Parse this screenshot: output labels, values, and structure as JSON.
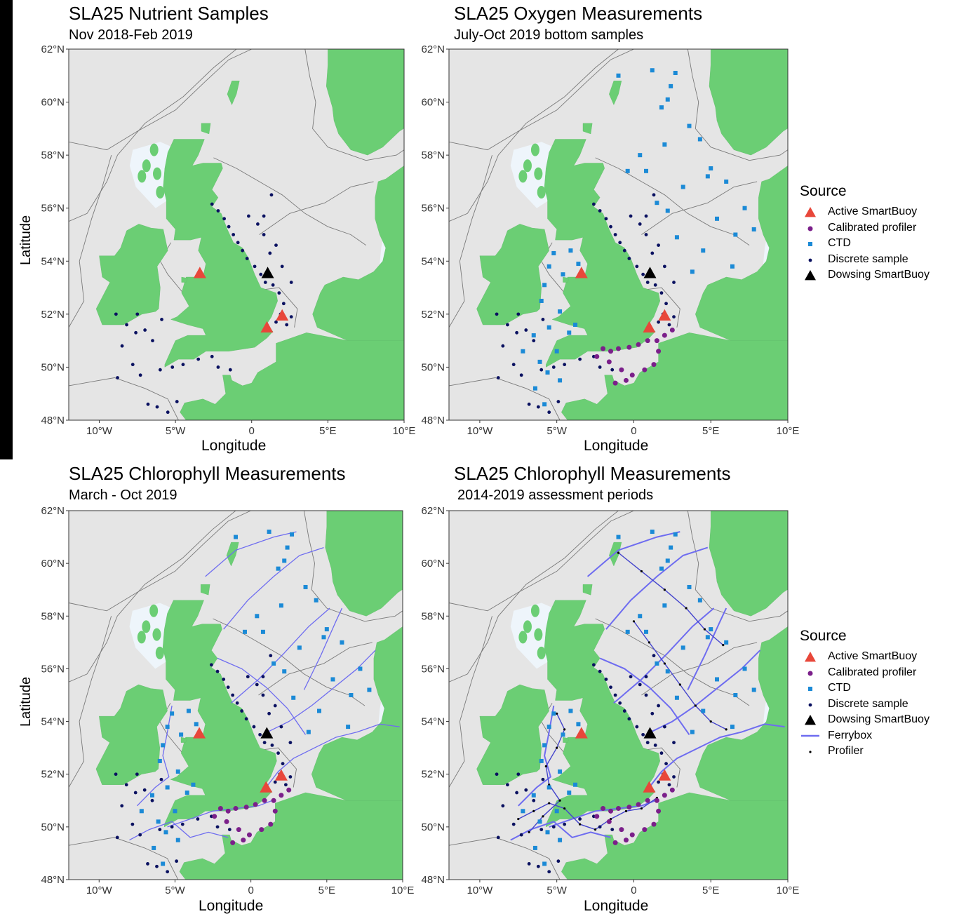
{
  "panels": [
    {
      "title": "SLA25 Nutrient Samples",
      "subtitle": "Nov 2018-Feb 2019",
      "ylabel": "Latitude",
      "xlabel": "Longitude",
      "layers": [
        "discrete",
        "asb",
        "dsb"
      ]
    },
    {
      "title": "SLA25 Oxygen Measurements",
      "subtitle": "July-Oct 2019 bottom samples",
      "ylabel": "",
      "xlabel": "Longitude",
      "layers": [
        "ctd",
        "discrete",
        "calib",
        "asb",
        "dsb"
      ]
    },
    {
      "title": "SLA25 Chlorophyll Measurements",
      "subtitle": "March - Oct 2019",
      "ylabel": "Latitude",
      "xlabel": "Longitude",
      "layers": [
        "ferry",
        "ctd",
        "discrete",
        "calib",
        "asb",
        "dsb"
      ]
    },
    {
      "title": "SLA25 Chlorophyll Measurements",
      "subtitle": "2014-2019 assessment periods",
      "ylabel": "",
      "xlabel": "Longitude",
      "layers": [
        "ferry",
        "profiler",
        "ctd",
        "discrete",
        "calib",
        "asb",
        "dsb"
      ]
    }
  ],
  "axes": {
    "lat_ticks": [
      {
        "value": 48,
        "label": "48°N"
      },
      {
        "value": 50,
        "label": "50°N"
      },
      {
        "value": 52,
        "label": "52°N"
      },
      {
        "value": 54,
        "label": "54°N"
      },
      {
        "value": 56,
        "label": "56°N"
      },
      {
        "value": 58,
        "label": "58°N"
      },
      {
        "value": 60,
        "label": "60°N"
      },
      {
        "value": 62,
        "label": "62°N"
      }
    ],
    "lon_ticks": [
      {
        "value": -10,
        "label": "10°W"
      },
      {
        "value": -5,
        "label": "5°W"
      },
      {
        "value": 0,
        "label": "0"
      },
      {
        "value": 5,
        "label": "5°E"
      },
      {
        "value": 10,
        "label": "10°E"
      }
    ],
    "lon_range": [
      -12,
      10
    ],
    "lat_range": [
      48,
      62
    ]
  },
  "legends": [
    {
      "title": "Source",
      "items": [
        {
          "key": "asb",
          "label": "Active SmartBuoy"
        },
        {
          "key": "calib",
          "label": "Calibrated profiler"
        },
        {
          "key": "ctd",
          "label": "CTD"
        },
        {
          "key": "discrete",
          "label": "Discrete sample"
        },
        {
          "key": "dsb",
          "label": "Dowsing SmartBuoy"
        }
      ]
    },
    {
      "title": "Source",
      "items": [
        {
          "key": "asb",
          "label": "Active SmartBuoy"
        },
        {
          "key": "calib",
          "label": "Calibrated profiler"
        },
        {
          "key": "ctd",
          "label": "CTD"
        },
        {
          "key": "discrete",
          "label": "Discrete sample"
        },
        {
          "key": "dsb",
          "label": "Dowsing SmartBuoy"
        },
        {
          "key": "ferry",
          "label": "Ferrybox"
        },
        {
          "key": "profiler",
          "label": "Profiler"
        }
      ]
    }
  ],
  "colors": {
    "sea": "#e5e5e5",
    "land": "#6bce74",
    "shallow": "#eef5fb",
    "contour": "#7a7a7a",
    "asb": "#e8473a",
    "calib": "#7b1f8a",
    "ctd": "#1b8ad6",
    "discrete": "#0a1160",
    "dsb": "#000000",
    "ferry": "#6e6cf0",
    "profiler": "#000000"
  },
  "stations": {
    "asb": [
      [
        -3.4,
        53.55
      ],
      [
        1.0,
        51.5
      ],
      [
        2.0,
        51.95
      ]
    ],
    "dsb": [
      [
        1.05,
        53.55
      ]
    ],
    "discrete": [
      [
        -2.6,
        56.15
      ],
      [
        -2.2,
        55.9
      ],
      [
        -1.8,
        55.6
      ],
      [
        -1.5,
        55.3
      ],
      [
        -1.2,
        55.0
      ],
      [
        -0.9,
        54.7
      ],
      [
        -0.6,
        54.4
      ],
      [
        -0.3,
        54.1
      ],
      [
        0.2,
        53.8
      ],
      [
        0.6,
        53.5
      ],
      [
        0.9,
        53.2
      ],
      [
        1.4,
        53.1
      ],
      [
        1.8,
        52.8
      ],
      [
        2.1,
        52.4
      ],
      [
        1.9,
        52.0
      ],
      [
        1.6,
        51.7
      ],
      [
        2.3,
        51.6
      ],
      [
        2.6,
        51.9
      ],
      [
        1.2,
        54.3
      ],
      [
        1.6,
        54.6
      ],
      [
        0.8,
        55.0
      ],
      [
        0.4,
        55.4
      ],
      [
        -0.2,
        55.7
      ],
      [
        1.3,
        56.5
      ],
      [
        0.8,
        55.7
      ],
      [
        2.0,
        53.8
      ],
      [
        2.6,
        53.2
      ],
      [
        -7.5,
        52.0
      ],
      [
        -8.2,
        51.6
      ],
      [
        -7.0,
        51.4
      ],
      [
        -6.5,
        51.0
      ],
      [
        -8.5,
        50.8
      ],
      [
        -7.8,
        50.1
      ],
      [
        -8.8,
        49.6
      ],
      [
        -7.3,
        49.7
      ],
      [
        -6.0,
        49.9
      ],
      [
        -5.2,
        50.0
      ],
      [
        -4.5,
        50.1
      ],
      [
        -3.5,
        50.3
      ],
      [
        -2.6,
        50.4
      ],
      [
        -2.2,
        50.0
      ],
      [
        -1.4,
        49.9
      ],
      [
        -6.8,
        48.6
      ],
      [
        -5.5,
        48.3
      ],
      [
        -4.9,
        48.7
      ],
      [
        -6.2,
        48.5
      ],
      [
        -5.9,
        51.8
      ],
      [
        -7.6,
        51.3
      ],
      [
        -8.9,
        52.0
      ]
    ],
    "ctd": [
      [
        -5.2,
        54.3
      ],
      [
        -5.5,
        53.8
      ],
      [
        -4.6,
        53.5
      ],
      [
        -5.8,
        53.1
      ],
      [
        -6.0,
        52.5
      ],
      [
        -4.8,
        52.1
      ],
      [
        -5.5,
        51.5
      ],
      [
        -6.5,
        51.2
      ],
      [
        -4.2,
        51.3
      ],
      [
        -5.0,
        50.6
      ],
      [
        -6.1,
        50.2
      ],
      [
        -5.6,
        49.8
      ],
      [
        -4.8,
        49.5
      ],
      [
        -7.2,
        50.6
      ],
      [
        -6.4,
        49.2
      ],
      [
        -5.8,
        48.6
      ],
      [
        -3.8,
        51.6
      ],
      [
        -4.1,
        54.4
      ],
      [
        -3.6,
        53.9
      ],
      [
        1.5,
        56.2
      ],
      [
        3.2,
        56.8
      ],
      [
        5.0,
        57.5
      ],
      [
        6.0,
        57.0
      ],
      [
        7.2,
        56.0
      ],
      [
        7.8,
        55.2
      ],
      [
        6.6,
        55.0
      ],
      [
        5.4,
        55.6
      ],
      [
        4.5,
        54.4
      ],
      [
        3.8,
        53.6
      ],
      [
        2.8,
        54.9
      ],
      [
        2.2,
        55.9
      ],
      [
        0.8,
        57.4
      ],
      [
        2.0,
        58.4
      ],
      [
        3.6,
        59.1
      ],
      [
        4.3,
        58.6
      ],
      [
        1.8,
        59.8
      ],
      [
        2.4,
        60.6
      ],
      [
        -1.0,
        61.0
      ],
      [
        1.2,
        61.2
      ],
      [
        2.7,
        61.1
      ],
      [
        0.4,
        58.0
      ],
      [
        -0.4,
        57.4
      ],
      [
        4.8,
        57.2
      ],
      [
        6.4,
        53.8
      ],
      [
        2.2,
        60.1
      ]
    ],
    "calib": [
      [
        -2.0,
        50.7
      ],
      [
        -1.5,
        50.6
      ],
      [
        -1.0,
        50.7
      ],
      [
        -0.3,
        50.75
      ],
      [
        0.3,
        50.85
      ],
      [
        0.9,
        51.0
      ],
      [
        1.5,
        51.0
      ],
      [
        2.0,
        51.2
      ],
      [
        2.5,
        51.4
      ],
      [
        -2.4,
        50.4
      ],
      [
        -1.6,
        50.2
      ],
      [
        -0.8,
        49.9
      ],
      [
        -0.1,
        49.7
      ],
      [
        0.7,
        49.9
      ],
      [
        1.3,
        50.1
      ],
      [
        -1.2,
        49.4
      ],
      [
        -0.5,
        49.5
      ],
      [
        1.6,
        50.6
      ]
    ]
  },
  "ferry_routes": [
    [
      [
        1.0,
        51.5
      ],
      [
        1.8,
        52.1
      ],
      [
        2.8,
        52.6
      ],
      [
        4.2,
        53.0
      ],
      [
        5.6,
        53.4
      ],
      [
        7.0,
        53.6
      ],
      [
        8.5,
        53.9
      ],
      [
        9.8,
        53.8
      ]
    ],
    [
      [
        1.1,
        53.6
      ],
      [
        2.5,
        54.0
      ],
      [
        4.0,
        54.6
      ],
      [
        5.5,
        55.3
      ],
      [
        7.0,
        56.0
      ],
      [
        8.2,
        56.7
      ]
    ],
    [
      [
        -1.3,
        54.7
      ],
      [
        0.5,
        55.6
      ],
      [
        2.2,
        56.6
      ],
      [
        3.8,
        57.6
      ],
      [
        5.2,
        58.3
      ]
    ],
    [
      [
        -1.8,
        57.5
      ],
      [
        -0.2,
        58.6
      ],
      [
        1.5,
        59.5
      ],
      [
        3.2,
        60.3
      ],
      [
        4.8,
        60.6
      ]
    ],
    [
      [
        -2.2,
        56.4
      ],
      [
        -0.6,
        56.0
      ],
      [
        1.0,
        55.3
      ],
      [
        2.4,
        54.5
      ],
      [
        3.6,
        53.5
      ]
    ],
    [
      [
        -5.5,
        50.0
      ],
      [
        -4.0,
        50.3
      ],
      [
        -2.5,
        50.6
      ],
      [
        -1.0,
        50.7
      ],
      [
        0.5,
        50.8
      ],
      [
        1.4,
        51.0
      ]
    ],
    [
      [
        -8.0,
        49.5
      ],
      [
        -6.7,
        49.9
      ],
      [
        -5.2,
        50.2
      ],
      [
        -4.0,
        49.6
      ],
      [
        -2.8,
        49.8
      ],
      [
        -1.5,
        49.6
      ]
    ],
    [
      [
        -5.2,
        54.6
      ],
      [
        -5.5,
        53.6
      ],
      [
        -5.8,
        52.7
      ],
      [
        -5.4,
        51.9
      ],
      [
        -6.3,
        51.5
      ],
      [
        -7.5,
        50.8
      ]
    ],
    [
      [
        -3.0,
        59.5
      ],
      [
        -1.0,
        60.5
      ],
      [
        1.5,
        61.0
      ],
      [
        3.0,
        61.2
      ]
    ],
    [
      [
        3.5,
        55.2
      ],
      [
        4.6,
        56.5
      ],
      [
        5.6,
        57.8
      ],
      [
        6.0,
        58.3
      ]
    ]
  ],
  "profiler_tracks": [
    [
      [
        -7.5,
        50.3
      ],
      [
        -6.5,
        50.6
      ],
      [
        -5.5,
        50.9
      ],
      [
        -4.5,
        50.7
      ],
      [
        -3.5,
        50.1
      ],
      [
        -2.5,
        49.9
      ],
      [
        -1.5,
        50.3
      ],
      [
        -0.5,
        50.6
      ],
      [
        0.5,
        50.7
      ],
      [
        1.5,
        51.1
      ]
    ],
    [
      [
        -5.0,
        54.3
      ],
      [
        -4.5,
        53.7
      ],
      [
        -5.0,
        53.0
      ],
      [
        -5.7,
        52.3
      ],
      [
        -5.5,
        51.6
      ],
      [
        -4.8,
        51.0
      ],
      [
        -5.9,
        50.4
      ],
      [
        -6.8,
        49.8
      ]
    ],
    [
      [
        0.0,
        57.8
      ],
      [
        1.0,
        57.0
      ],
      [
        2.0,
        56.2
      ],
      [
        3.0,
        55.4
      ],
      [
        4.0,
        54.6
      ],
      [
        5.0,
        54.0
      ],
      [
        6.0,
        53.7
      ]
    ],
    [
      [
        -1.0,
        60.4
      ],
      [
        0.5,
        59.7
      ],
      [
        2.0,
        59.0
      ],
      [
        3.4,
        58.3
      ],
      [
        4.6,
        57.5
      ],
      [
        5.8,
        56.9
      ]
    ]
  ]
}
